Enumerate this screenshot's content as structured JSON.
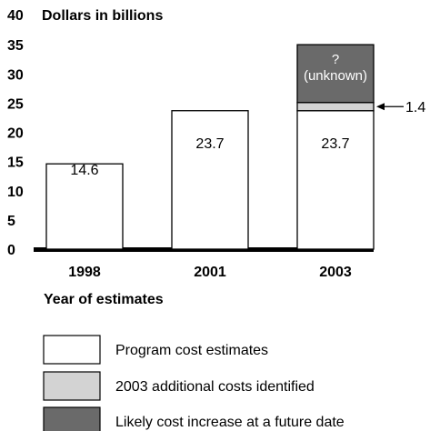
{
  "chart_data": {
    "type": "bar",
    "stacked": true,
    "title": "Dollars in billions",
    "xlabel": "Year of estimates",
    "ylabel": "",
    "ylim": [
      0,
      40
    ],
    "yticks": [
      "0",
      "5",
      "10",
      "15",
      "20",
      "25",
      "30",
      "35",
      "40"
    ],
    "categories": [
      "1998",
      "2001",
      "2003"
    ],
    "grid": false,
    "legend_position": "bottom",
    "series": [
      {
        "name": "Program cost estimates",
        "values": [
          14.6,
          23.7,
          23.7
        ],
        "labels": [
          "14.6",
          "23.7",
          "23.7"
        ],
        "color": "#ffffff"
      },
      {
        "name": "2003 additional costs identified",
        "values": [
          0,
          0,
          1.4
        ],
        "labels": [
          "",
          "",
          "1.4"
        ],
        "color": "#d3d3d3"
      },
      {
        "name": "Likely cost increase at a future date",
        "values": [
          0,
          0,
          9.9
        ],
        "labels": [
          "",
          "",
          "?"
        ],
        "sublabels": [
          "",
          "",
          "(unknown)"
        ],
        "color": "#6a6a6a"
      }
    ]
  }
}
